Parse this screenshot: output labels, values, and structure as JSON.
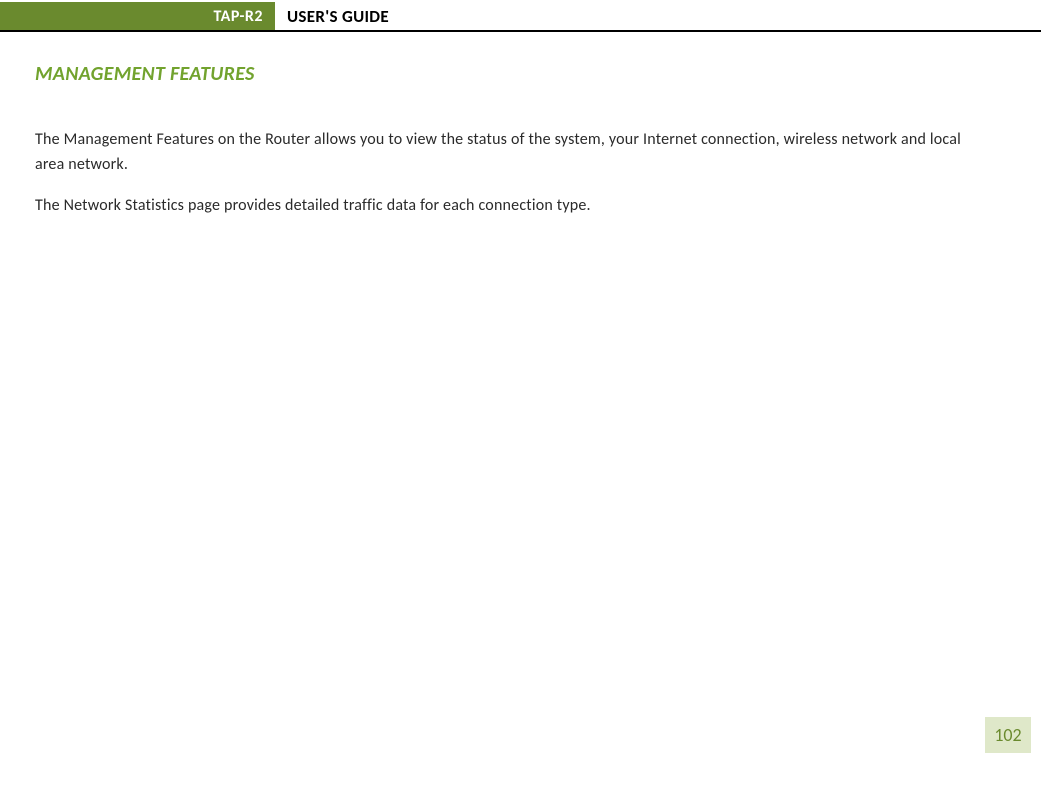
{
  "header": {
    "badge": "TAP-R2",
    "title": "USER'S GUIDE",
    "badge_bg": "#6a8a2e",
    "badge_text_color": "#ffffff",
    "border_color": "#000000"
  },
  "section": {
    "heading": "MANAGEMENT FEATURES",
    "heading_color": "#72a32e"
  },
  "paragraphs": {
    "p1": "The Management Features on the Router allows you to view the status of the system, your Internet connection, wireless network and local area network.",
    "p2": "The Network Statistics page provides detailed traffic data for each connection type."
  },
  "page": {
    "number": "102",
    "number_bg": "#dfe8c9",
    "number_color": "#6a8a2e"
  }
}
